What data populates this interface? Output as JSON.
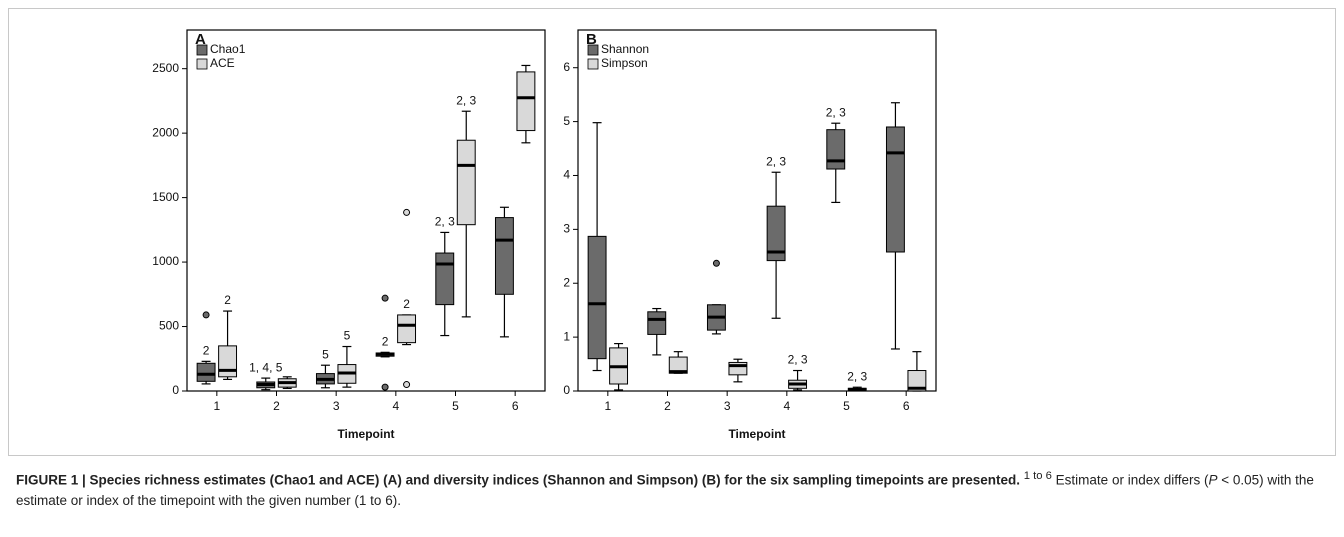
{
  "chart_data": [
    {
      "type": "box",
      "panel_label": "A",
      "x_label": "Timepoint",
      "categories": [
        "1",
        "2",
        "3",
        "4",
        "5",
        "6"
      ],
      "ylim": [
        0,
        2800
      ],
      "yticks": [
        0,
        500,
        1000,
        1500,
        2000,
        2500
      ],
      "series": [
        {
          "name": "Chao1",
          "color": "#6b6b6b",
          "min": [
            55,
            10,
            25,
            265,
            430,
            420
          ],
          "q1": [
            75,
            25,
            55,
            270,
            670,
            750
          ],
          "median": [
            130,
            50,
            90,
            285,
            985,
            1170
          ],
          "q3": [
            215,
            70,
            135,
            295,
            1070,
            1345
          ],
          "max": [
            230,
            100,
            200,
            300,
            1230,
            1425
          ],
          "outliers": [
            [
              590
            ],
            [],
            [],
            [
              720,
              30
            ],
            [],
            []
          ],
          "annotations": [
            "2",
            "1, 4, 5",
            "5",
            "2",
            "2, 3",
            null
          ]
        },
        {
          "name": "ACE",
          "color": "#d9d9d9",
          "min": [
            90,
            20,
            30,
            360,
            575,
            1925
          ],
          "q1": [
            110,
            30,
            60,
            375,
            1290,
            2020
          ],
          "median": [
            160,
            65,
            140,
            510,
            1750,
            2275
          ],
          "q3": [
            350,
            95,
            205,
            590,
            1945,
            2475
          ],
          "max": [
            620,
            110,
            345,
            590,
            2170,
            2525
          ],
          "outliers": [
            [],
            [],
            [],
            [
              1385,
              50
            ],
            [],
            []
          ],
          "annotations": [
            "2",
            null,
            "5",
            "2",
            "2, 3",
            null
          ]
        }
      ]
    },
    {
      "type": "box",
      "panel_label": "B",
      "x_label": "Timepoint",
      "categories": [
        "1",
        "2",
        "3",
        "4",
        "5",
        "6"
      ],
      "ylim": [
        0,
        6.7
      ],
      "yticks": [
        0,
        1,
        2,
        3,
        4,
        5,
        6
      ],
      "series": [
        {
          "name": "Shannon",
          "color": "#6b6b6b",
          "min": [
            0.38,
            0.67,
            1.06,
            1.35,
            3.5,
            0.78
          ],
          "q1": [
            0.6,
            1.05,
            1.13,
            2.42,
            4.12,
            2.58
          ],
          "median": [
            1.62,
            1.33,
            1.37,
            2.58,
            4.27,
            4.42
          ],
          "q3": [
            2.87,
            1.47,
            1.6,
            3.43,
            4.85,
            4.9
          ],
          "max": [
            4.98,
            1.53,
            1.6,
            4.06,
            4.97,
            5.35
          ],
          "outliers": [
            [],
            [],
            [
              2.37
            ],
            [],
            [],
            []
          ],
          "annotations": [
            null,
            null,
            null,
            "2, 3",
            "2, 3",
            null
          ]
        },
        {
          "name": "Simpson",
          "color": "#d9d9d9",
          "min": [
            0.02,
            0.33,
            0.17,
            0.02,
            0.01,
            0.0
          ],
          "q1": [
            0.13,
            0.33,
            0.3,
            0.05,
            0.02,
            0.0
          ],
          "median": [
            0.45,
            0.36,
            0.47,
            0.13,
            0.03,
            0.05
          ],
          "q3": [
            0.8,
            0.63,
            0.53,
            0.2,
            0.05,
            0.38
          ],
          "max": [
            0.88,
            0.73,
            0.59,
            0.38,
            0.07,
            0.73
          ],
          "outliers": [
            [],
            [],
            [],
            [],
            [],
            []
          ],
          "annotations": [
            null,
            null,
            null,
            "2, 3",
            "2, 3",
            null
          ]
        }
      ]
    }
  ],
  "caption": {
    "bold": "FIGURE 1 | Species richness estimates (Chao1 and ACE) (A) and diversity indices (Shannon and Simpson) (B) for the six sampling timepoints are presented.",
    "superscript": "1 to 6",
    "text_parts": [
      " Estimate or index differs (",
      "P",
      " < 0.05) with the estimate or index of the timepoint with the given number (1 to 6)."
    ]
  }
}
